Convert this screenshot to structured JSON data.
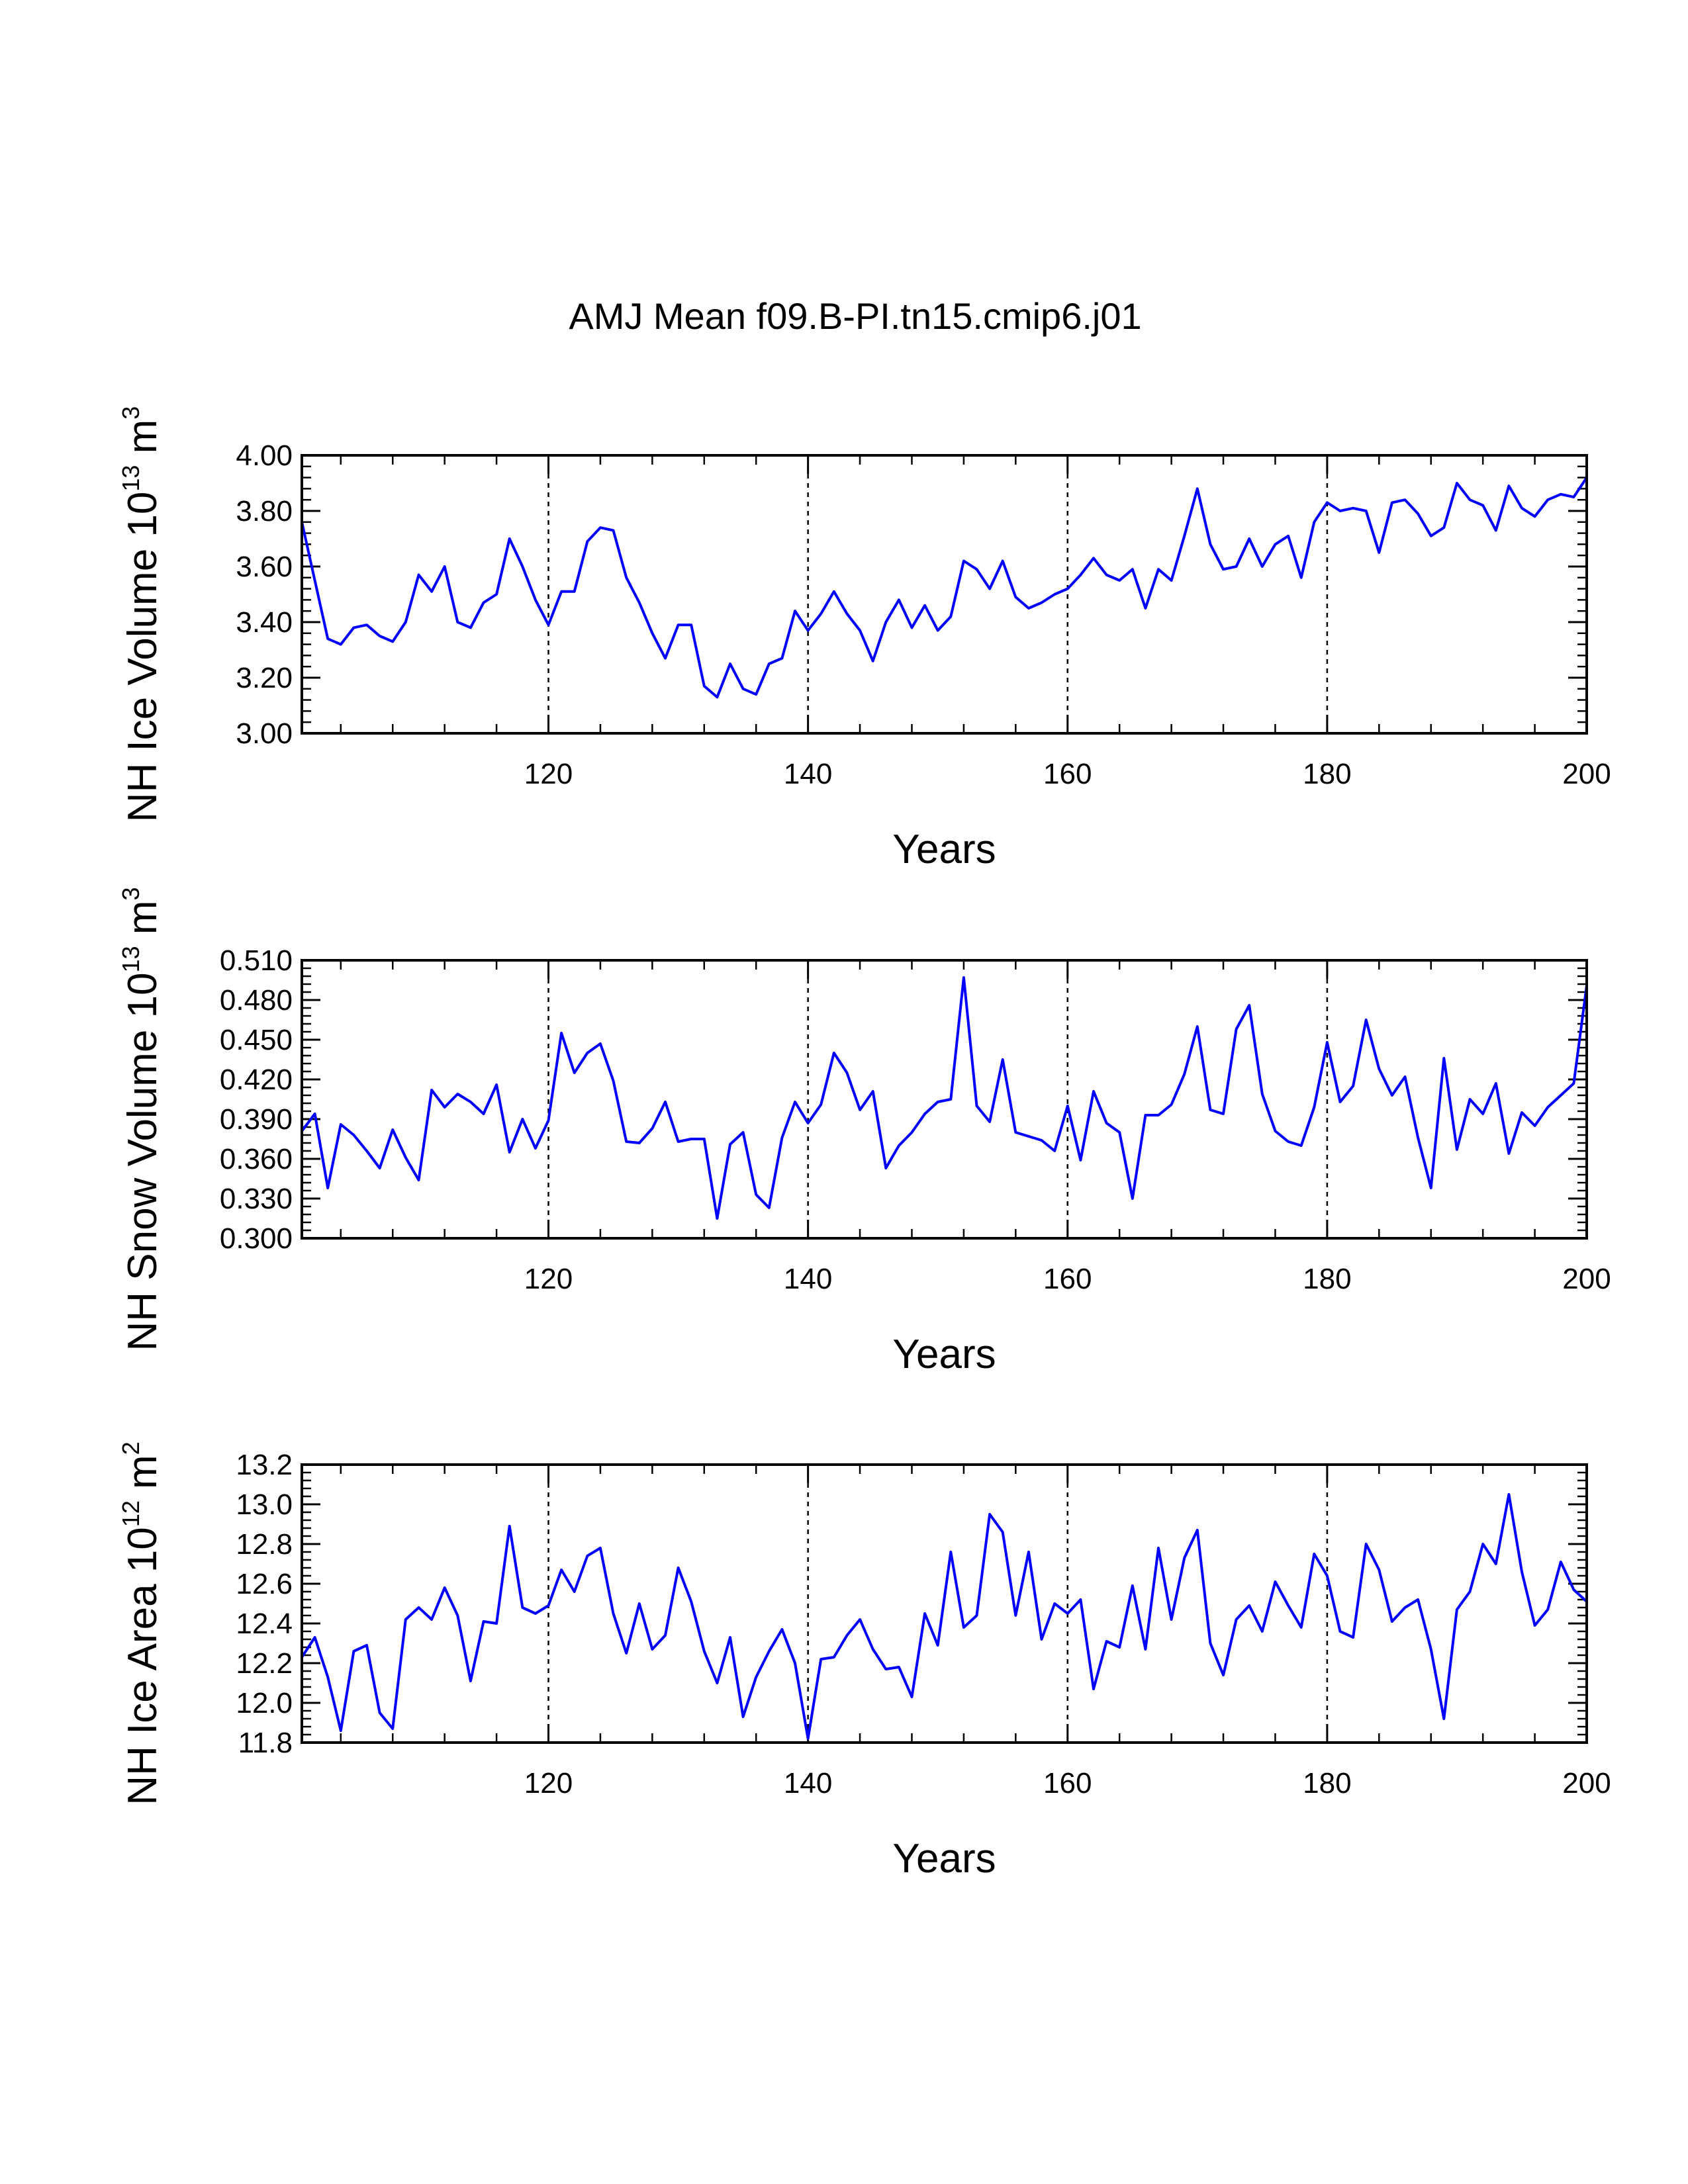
{
  "figure": {
    "title": "AMJ Mean f09.B-PI.tn15.cmip6.j01"
  },
  "chart_data": [
    {
      "type": "line",
      "xlabel": "Years",
      "ylabel": {
        "text": "NH Ice Volume 10",
        "exp": "13",
        "unit": " m",
        "unit_exp": "3"
      },
      "xlim": [
        101,
        200
      ],
      "ylim": [
        3.0,
        4.0
      ],
      "x_ticks": [
        120,
        140,
        160,
        180,
        200
      ],
      "x_tick_labels": [
        "120",
        "140",
        "160",
        "180",
        "200"
      ],
      "y_ticks": [
        3.0,
        3.2,
        3.4,
        3.6,
        3.8,
        4.0
      ],
      "y_tick_labels": [
        "3.00",
        "3.20",
        "3.40",
        "3.60",
        "3.80",
        "4.00"
      ],
      "y_minor_step": 0.04,
      "reference_lines_x": [
        120,
        140,
        160,
        180
      ],
      "line_color": "#0000ff",
      "x_start": 101,
      "values": [
        3.76,
        3.55,
        3.34,
        3.32,
        3.38,
        3.39,
        3.35,
        3.33,
        3.4,
        3.57,
        3.51,
        3.6,
        3.4,
        3.38,
        3.47,
        3.5,
        3.7,
        3.6,
        3.48,
        3.39,
        3.51,
        3.51,
        3.69,
        3.74,
        3.73,
        3.56,
        3.47,
        3.36,
        3.27,
        3.39,
        3.39,
        3.17,
        3.13,
        3.25,
        3.16,
        3.14,
        3.25,
        3.27,
        3.44,
        3.37,
        3.43,
        3.51,
        3.43,
        3.37,
        3.26,
        3.4,
        3.48,
        3.38,
        3.46,
        3.37,
        3.42,
        3.62,
        3.59,
        3.52,
        3.62,
        3.49,
        3.45,
        3.47,
        3.5,
        3.52,
        3.57,
        3.63,
        3.57,
        3.55,
        3.59,
        3.45,
        3.59,
        3.55,
        3.71,
        3.88,
        3.68,
        3.59,
        3.6,
        3.7,
        3.6,
        3.68,
        3.71,
        3.56,
        3.76,
        3.83,
        3.8,
        3.81,
        3.8,
        3.65,
        3.83,
        3.84,
        3.79,
        3.71,
        3.74,
        3.9,
        3.84,
        3.82,
        3.73,
        3.89,
        3.81,
        3.78,
        3.84,
        3.86,
        3.85,
        3.92
      ]
    },
    {
      "type": "line",
      "xlabel": "Years",
      "ylabel": {
        "text": "NH Snow Volume 10",
        "exp": "13",
        "unit": " m",
        "unit_exp": "3"
      },
      "xlim": [
        101,
        200
      ],
      "ylim": [
        0.3,
        0.51
      ],
      "x_ticks": [
        120,
        140,
        160,
        180,
        200
      ],
      "x_tick_labels": [
        "120",
        "140",
        "160",
        "180",
        "200"
      ],
      "y_ticks": [
        0.3,
        0.33,
        0.36,
        0.39,
        0.42,
        0.45,
        0.48,
        0.51
      ],
      "y_tick_labels": [
        "0.300",
        "0.330",
        "0.360",
        "0.390",
        "0.420",
        "0.450",
        "0.480",
        "0.510"
      ],
      "y_minor_step": 0.006,
      "reference_lines_x": [
        120,
        140,
        160,
        180
      ],
      "line_color": "#0000ff",
      "x_start": 101,
      "values": [
        0.381,
        0.394,
        0.338,
        0.386,
        0.378,
        0.366,
        0.353,
        0.382,
        0.361,
        0.344,
        0.412,
        0.399,
        0.409,
        0.403,
        0.394,
        0.416,
        0.365,
        0.39,
        0.368,
        0.389,
        0.455,
        0.425,
        0.44,
        0.447,
        0.419,
        0.373,
        0.372,
        0.383,
        0.403,
        0.373,
        0.375,
        0.375,
        0.315,
        0.371,
        0.38,
        0.333,
        0.323,
        0.376,
        0.403,
        0.387,
        0.401,
        0.44,
        0.425,
        0.397,
        0.411,
        0.353,
        0.37,
        0.38,
        0.394,
        0.403,
        0.405,
        0.497,
        0.4,
        0.388,
        0.435,
        0.38,
        0.377,
        0.374,
        0.366,
        0.4,
        0.359,
        0.411,
        0.387,
        0.38,
        0.33,
        0.393,
        0.393,
        0.401,
        0.424,
        0.46,
        0.397,
        0.394,
        0.458,
        0.476,
        0.409,
        0.381,
        0.373,
        0.37,
        0.399,
        0.448,
        0.403,
        0.415,
        0.465,
        0.428,
        0.408,
        0.422,
        0.376,
        0.338,
        0.436,
        0.367,
        0.405,
        0.394,
        0.417,
        0.364,
        0.395,
        0.385,
        0.399,
        0.408,
        0.417,
        0.491
      ]
    },
    {
      "type": "line",
      "xlabel": "Years",
      "ylabel": {
        "text": "NH Ice Area 10",
        "exp": "12",
        "unit": " m",
        "unit_exp": "2"
      },
      "xlim": [
        101,
        200
      ],
      "ylim": [
        11.8,
        13.2
      ],
      "x_ticks": [
        120,
        140,
        160,
        180,
        200
      ],
      "x_tick_labels": [
        "120",
        "140",
        "160",
        "180",
        "200"
      ],
      "y_ticks": [
        11.8,
        12.0,
        12.2,
        12.4,
        12.6,
        12.8,
        13.0,
        13.2
      ],
      "y_tick_labels": [
        "11.8",
        "12.0",
        "12.2",
        "12.4",
        "12.6",
        "12.8",
        "13.0",
        "13.2"
      ],
      "y_minor_step": 0.04,
      "reference_lines_x": [
        120,
        140,
        160,
        180
      ],
      "line_color": "#0000ff",
      "x_start": 101,
      "values": [
        12.23,
        12.33,
        12.13,
        11.86,
        12.26,
        12.29,
        11.95,
        11.87,
        12.42,
        12.48,
        12.42,
        12.58,
        12.44,
        12.11,
        12.41,
        12.4,
        12.89,
        12.48,
        12.45,
        12.49,
        12.67,
        12.56,
        12.74,
        12.78,
        12.45,
        12.25,
        12.5,
        12.27,
        12.34,
        12.68,
        12.51,
        12.26,
        12.1,
        12.33,
        11.93,
        12.13,
        12.26,
        12.37,
        12.2,
        11.82,
        12.22,
        12.23,
        12.34,
        12.42,
        12.27,
        12.17,
        12.18,
        12.03,
        12.45,
        12.29,
        12.76,
        12.38,
        12.44,
        12.95,
        12.86,
        12.44,
        12.76,
        12.32,
        12.5,
        12.45,
        12.52,
        12.07,
        12.31,
        12.28,
        12.59,
        12.27,
        12.78,
        12.42,
        12.73,
        12.87,
        12.3,
        12.14,
        12.42,
        12.49,
        12.36,
        12.61,
        12.49,
        12.38,
        12.75,
        12.64,
        12.36,
        12.33,
        12.8,
        12.67,
        12.41,
        12.48,
        12.52,
        12.27,
        11.92,
        12.47,
        12.56,
        12.8,
        12.7,
        13.05,
        12.66,
        12.39,
        12.47,
        12.71,
        12.57,
        12.51
      ]
    }
  ]
}
